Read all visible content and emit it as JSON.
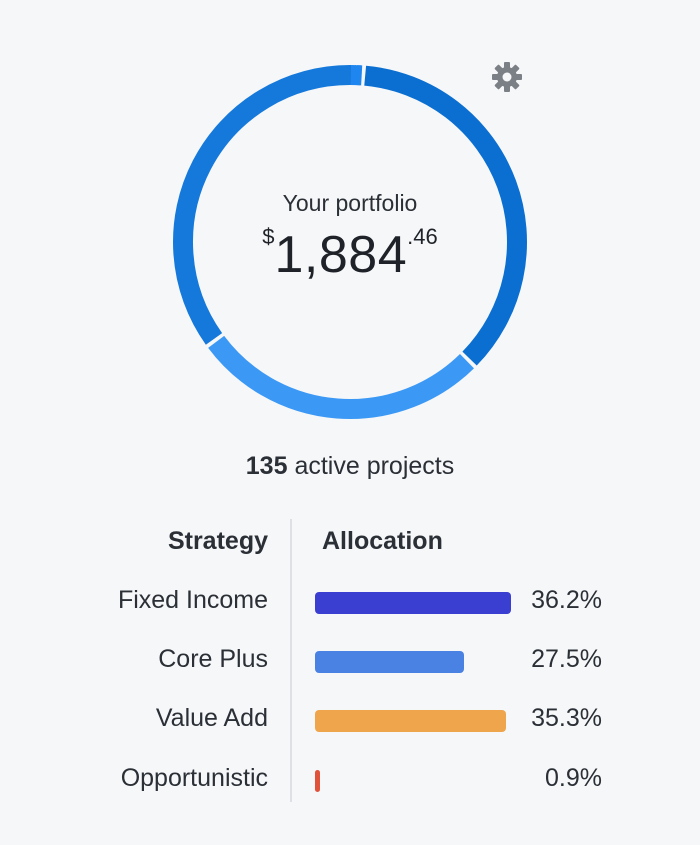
{
  "header": {
    "settings_icon": "gear-icon",
    "settings_color": "#7b7f86"
  },
  "portfolio": {
    "label": "Your portfolio",
    "currency": "$",
    "whole": "1,884",
    "cents": ".46",
    "ring_segments": [
      {
        "fraction": 0.362,
        "color": "#0a6fd1"
      },
      {
        "fraction": 0.275,
        "color": "#3b99f5"
      },
      {
        "fraction": 0.353,
        "color": "#1479db"
      },
      {
        "fraction": 0.009,
        "color": "#1f86f0"
      }
    ]
  },
  "projects": {
    "count": "135",
    "label": "active projects"
  },
  "table": {
    "header_strategy": "Strategy",
    "header_allocation": "Allocation",
    "rows": [
      {
        "name": "Fixed Income",
        "pct": "36.2%",
        "value": 36.2,
        "color": "#3b3fd1"
      },
      {
        "name": "Core Plus",
        "pct": "27.5%",
        "value": 27.5,
        "color": "#4a82e3"
      },
      {
        "name": "Value Add",
        "pct": "35.3%",
        "value": 35.3,
        "color": "#efa54b"
      },
      {
        "name": "Opportunistic",
        "pct": "0.9%",
        "value": 0.9,
        "color": "#e0533a"
      }
    ]
  }
}
